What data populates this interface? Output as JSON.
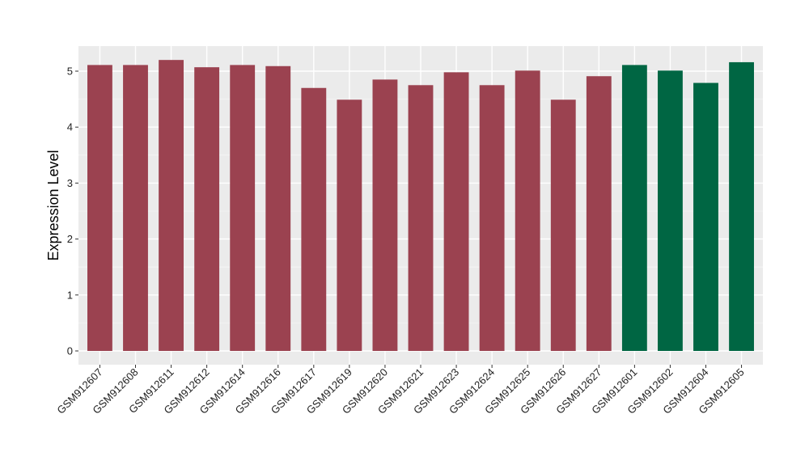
{
  "chart_data": {
    "type": "bar",
    "title": "",
    "xlabel": "",
    "ylabel": "Expression Level",
    "ylim": [
      -0.25,
      5.45
    ],
    "yticks": [
      0,
      1,
      2,
      3,
      4,
      5
    ],
    "grid": true,
    "legend": "none",
    "categories": [
      "GSM912607",
      "GSM912608",
      "GSM912611",
      "GSM912612",
      "GSM912614",
      "GSM912616",
      "GSM912617",
      "GSM912619",
      "GSM912620",
      "GSM912621",
      "GSM912623",
      "GSM912624",
      "GSM912625",
      "GSM912626",
      "GSM912627",
      "GSM912601",
      "GSM912602",
      "GSM912604",
      "GSM912605"
    ],
    "values": [
      5.11,
      5.11,
      5.2,
      5.07,
      5.11,
      5.09,
      4.7,
      4.49,
      4.85,
      4.75,
      4.98,
      4.75,
      5.01,
      4.49,
      4.91,
      5.11,
      5.01,
      4.79,
      5.16
    ],
    "groups": [
      0,
      0,
      0,
      0,
      0,
      0,
      0,
      0,
      0,
      0,
      0,
      0,
      0,
      0,
      0,
      1,
      1,
      1,
      1
    ],
    "colors": [
      "#9b4250",
      "#006643"
    ]
  }
}
